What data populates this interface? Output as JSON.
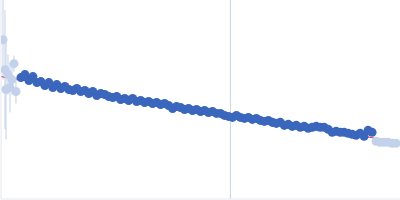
{
  "chart_data": {
    "type": "scatter",
    "xlim": [
      0,
      400
    ],
    "ylim": [
      0,
      200
    ],
    "tick_labels": false,
    "grid": false,
    "vline": 230,
    "series": [
      {
        "type": "scatter",
        "marker": "circle",
        "color": "#c3d2ea",
        "x": [
          2,
          4,
          5,
          7,
          9,
          11,
          13,
          15
        ],
        "values": [
          160,
          130,
          110,
          125,
          112,
          120,
          136,
          108
        ],
        "errors": [
          40,
          60,
          50,
          20,
          25,
          15,
          8,
          12
        ]
      },
      {
        "type": "scatter",
        "marker": "circle",
        "color": "#3a67bd",
        "x": [
          20,
          24,
          28,
          32,
          36,
          40,
          44,
          48,
          52,
          56,
          60,
          64,
          68,
          72,
          76,
          80,
          84,
          88,
          92,
          96,
          100,
          104,
          108,
          112,
          116,
          120,
          124,
          128,
          132,
          136,
          140,
          144,
          148,
          152,
          156,
          160,
          164,
          168,
          172,
          176,
          180,
          184,
          188,
          192,
          196,
          200,
          204,
          208,
          212,
          216,
          220,
          224,
          228,
          232,
          236,
          240,
          244,
          248,
          252,
          256,
          260,
          264,
          268,
          272,
          276,
          280,
          284,
          288,
          292,
          296,
          300,
          304,
          308,
          312,
          316,
          320,
          324,
          328,
          332,
          336,
          340,
          344,
          348,
          352,
          356,
          360,
          364,
          368,
          372
        ],
        "values": [
          122,
          125,
          119,
          123,
          117,
          118,
          114,
          117,
          112,
          115,
          111,
          113,
          110,
          109,
          111,
          108,
          109,
          106,
          108,
          104,
          106,
          105,
          103,
          102,
          103,
          100,
          101,
          99,
          101,
          98,
          99,
          97,
          98,
          96,
          97,
          95,
          96,
          94,
          91,
          93,
          92,
          90,
          91,
          89,
          90,
          88,
          89,
          87,
          88,
          86,
          86,
          84,
          83,
          82,
          84,
          82,
          81,
          82,
          80,
          81,
          79,
          78,
          79,
          77,
          76,
          77,
          74,
          75,
          73,
          74,
          72,
          73,
          71,
          72,
          73,
          72,
          72,
          70,
          67,
          68,
          67,
          67,
          66,
          65,
          64,
          66,
          63,
          69,
          67
        ]
      },
      {
        "type": "scatter",
        "marker": "circle",
        "color": "#c3d2ea",
        "x": [
          376,
          380,
          384,
          388,
          392,
          396
        ],
        "values": [
          58,
          57,
          57,
          57,
          56,
          56
        ],
        "errors": [
          2,
          2,
          2,
          2,
          2,
          2
        ]
      },
      {
        "type": "line",
        "line_style": "solid",
        "color": "#e03434",
        "x": [
          0,
          400
        ],
        "values": [
          123,
          57
        ]
      }
    ]
  }
}
